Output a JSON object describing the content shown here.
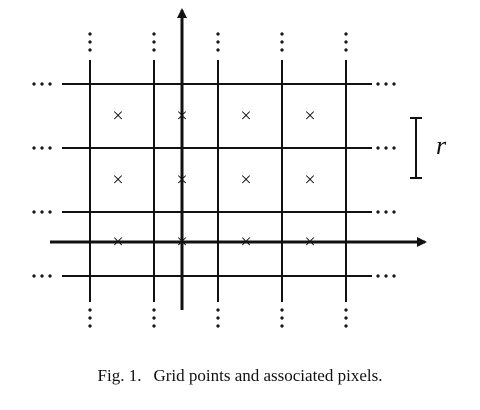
{
  "figure": {
    "symbol_r": "r",
    "marker": "×",
    "ellipsis_h": "…",
    "grid_lines_vertical": 5,
    "grid_lines_horizontal": 5,
    "marker_rows": 3,
    "marker_cols": 4,
    "ink_color": "#111111"
  },
  "caption": {
    "label": "Fig. 1.",
    "text": "Grid points and associated pixels."
  }
}
